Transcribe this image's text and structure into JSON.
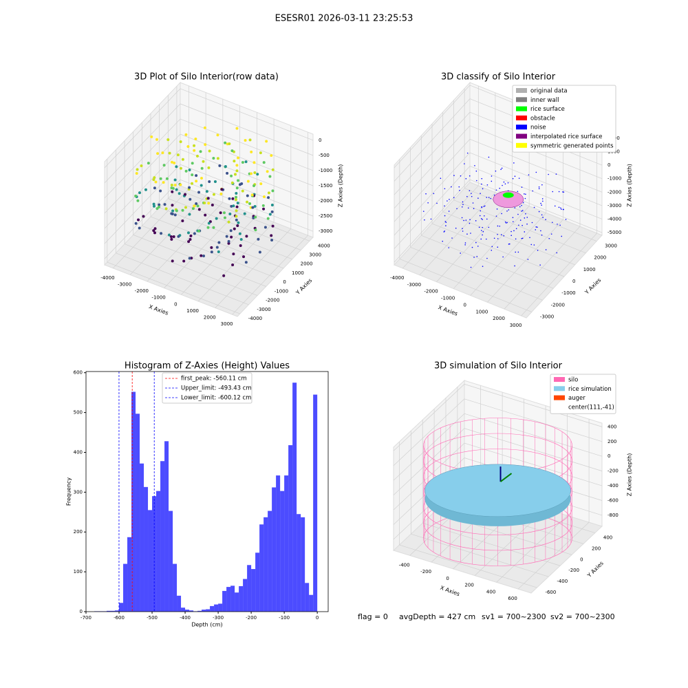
{
  "title": "ESESR01 2026-03-11 23:25:53",
  "chart_data": [
    {
      "type": "scatter3d",
      "title": "3D Plot of Silo Interior(row data)",
      "xlabel": "X Axies",
      "ylabel": "Y Axies",
      "zlabel": "Z Axies (Depth)",
      "xlim": [
        -4500,
        3300
      ],
      "ylim": [
        -4300,
        4400
      ],
      "zlim": [
        -3200,
        200
      ],
      "xticks": [
        -4000,
        -3000,
        -2000,
        -1000,
        0,
        1000,
        2000,
        3000
      ],
      "yticks": [
        -4000,
        -3000,
        -2000,
        -1000,
        0,
        1000,
        2000,
        3000,
        4000
      ],
      "zticks": [
        0,
        -500,
        -1000,
        -1500,
        -2000,
        -2500,
        -3000
      ],
      "grid": true
    },
    {
      "type": "scatter3d",
      "title": "3D classify of Silo Interior",
      "xlabel": "X Axies",
      "ylabel": "Y Axies",
      "zlabel": "Z Axies (Depth)",
      "xlim": [
        -4500,
        3300
      ],
      "ylim": [
        -3500,
        3500
      ],
      "zlim": [
        -5200,
        2200
      ],
      "xticks": [
        -4000,
        -3000,
        -2000,
        -1000,
        0,
        1000,
        2000,
        3000
      ],
      "yticks": [
        -3000,
        -2000,
        -1000,
        0,
        1000,
        2000,
        3000
      ],
      "zticks": [
        -5000,
        -4000,
        -3000,
        -2000,
        -1000,
        0,
        1000,
        2000
      ],
      "grid": true,
      "legend": [
        {
          "name": "original data",
          "color": "#b0b0b0"
        },
        {
          "name": "inner wall",
          "color": "#808080"
        },
        {
          "name": "rice surface",
          "color": "#00ff00"
        },
        {
          "name": "obstacle",
          "color": "#ff0000"
        },
        {
          "name": "noise",
          "color": "#0000ff"
        },
        {
          "name": "interpolated rice surface",
          "color": "#800080"
        },
        {
          "name": "symmetric generated points",
          "color": "#ffff00"
        }
      ]
    },
    {
      "type": "histogram",
      "title": "Histogram of Z-Axies (Height) Values",
      "xlabel": "Depth (cm)",
      "ylabel": "Frequency",
      "color": "#0000ff",
      "alpha": 0.7,
      "xlim": [
        -700,
        33
      ],
      "ylim": [
        0,
        603
      ],
      "xticks": [
        -700,
        -600,
        -500,
        -400,
        -300,
        -200,
        -100,
        0
      ],
      "yticks": [
        0,
        100,
        200,
        300,
        400,
        500,
        600
      ],
      "bins": [
        -675,
        -662.5,
        -650,
        -637.5,
        -625,
        -612.5,
        -600,
        -587.5,
        -575,
        -562.5,
        -550,
        -537.5,
        -525,
        -512.5,
        -500,
        -487.5,
        -475,
        -462.5,
        -450,
        -437.5,
        -425,
        -412.5,
        -400,
        -387.5,
        -375,
        -362.5,
        -350,
        -337.5,
        -325,
        -312.5,
        -300,
        -287.5,
        -275,
        -262.5,
        -250,
        -237.5,
        -225,
        -212.5,
        -200,
        -187.5,
        -175,
        -162.5,
        -150,
        -137.5,
        -125,
        -112.5,
        -100,
        -87.5,
        -75,
        -62.5,
        -50,
        -37.5,
        -25,
        -12.5,
        0
      ],
      "values": [
        1,
        1,
        1,
        2,
        2,
        3,
        22,
        120,
        187,
        552,
        497,
        372,
        313,
        255,
        290,
        303,
        378,
        428,
        253,
        120,
        40,
        10,
        5,
        3,
        1,
        2,
        5,
        6,
        14,
        18,
        20,
        52,
        62,
        65,
        48,
        64,
        82,
        117,
        107,
        148,
        219,
        237,
        253,
        312,
        342,
        303,
        342,
        418,
        575,
        245,
        237,
        72,
        42,
        545
      ],
      "vlines": [
        {
          "name": "first_peak: -560.11 cm",
          "value": -560.11,
          "color": "#ff0000"
        },
        {
          "name": "Upper_limit: -493.43 cm",
          "value": -493.43,
          "color": "#0000ff"
        },
        {
          "name": "Lower_limit: -600.12 cm",
          "value": -600.12,
          "color": "#0000ff"
        }
      ]
    },
    {
      "type": "surface3d",
      "title": "3D simulation of Silo Interior",
      "xlabel": "X Axies",
      "ylabel": "Y Axies",
      "zlabel": "Z Axies (Depth)",
      "xlim": [
        -550,
        720
      ],
      "ylim": [
        -700,
        520
      ],
      "zlim": [
        -950,
        450
      ],
      "xticks": [
        -400,
        -200,
        0,
        200,
        400,
        600
      ],
      "yticks": [
        -600,
        -400,
        -200,
        0,
        200,
        400
      ],
      "zticks": [
        -800,
        -600,
        -400,
        -200,
        0,
        200,
        400
      ],
      "grid": true,
      "legend": [
        {
          "name": "silo",
          "color": "#ff69b4"
        },
        {
          "name": "rice simulation",
          "color": "#87ceeb"
        },
        {
          "name": "auger",
          "color": "#ff4500"
        },
        {
          "name": "center(111,-41)",
          "color": null
        }
      ]
    }
  ],
  "footer": [
    "flag = 0",
    "avgDepth = 427 cm",
    "sv1 = 700~2300",
    "sv2 = 700~2300"
  ]
}
